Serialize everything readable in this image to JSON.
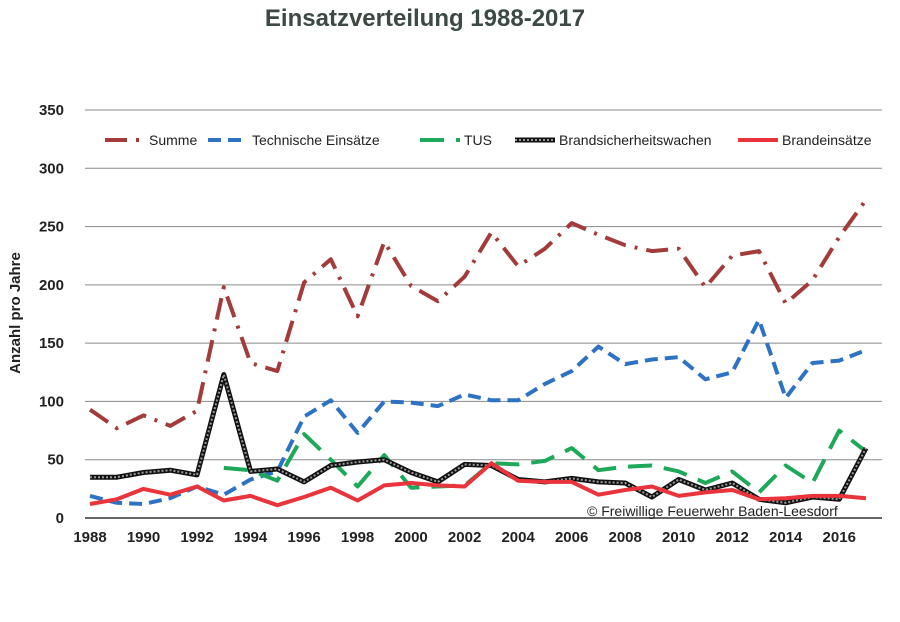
{
  "chart_data": {
    "type": "line",
    "title": "Einsatzverteilung 1988-2017",
    "ylabel": "Anzahl pro Jahre",
    "xlabel": "",
    "ylim": [
      0,
      350
    ],
    "yticks": [
      0,
      50,
      100,
      150,
      200,
      250,
      300,
      350
    ],
    "xlim": [
      1988,
      2017
    ],
    "xticks": [
      1988,
      1990,
      1992,
      1994,
      1996,
      1998,
      2000,
      2002,
      2004,
      2006,
      2008,
      2010,
      2012,
      2014,
      2016
    ],
    "grid": "horizontal",
    "legend_position": "top",
    "annotation": "© Freiwillige Feuerwehr Baden-Leesdorf",
    "series": [
      {
        "name": "Summe",
        "color": "#a33b3b",
        "dash": "dashdot",
        "x": [
          1988,
          1989,
          1990,
          1991,
          1992,
          1993,
          1994,
          1995,
          1996,
          1997,
          1998,
          1999,
          2000,
          2001,
          2002,
          2003,
          2004,
          2005,
          2006,
          2007,
          2008,
          2009,
          2010,
          2011,
          2012,
          2013,
          2014,
          2015,
          2016,
          2017
        ],
        "values": [
          93,
          77,
          88,
          79,
          92,
          198,
          133,
          126,
          202,
          222,
          173,
          237,
          199,
          186,
          207,
          245,
          216,
          231,
          253,
          243,
          234,
          229,
          231,
          198,
          225,
          229,
          184,
          204,
          241,
          273
        ]
      },
      {
        "name": "Technische Einsätze",
        "color": "#2e72c4",
        "dash": "dash",
        "x": [
          1988,
          1989,
          1990,
          1991,
          1992,
          1993,
          1994,
          1995,
          1996,
          1997,
          1998,
          1999,
          2000,
          2001,
          2002,
          2003,
          2004,
          2005,
          2006,
          2007,
          2008,
          2009,
          2010,
          2011,
          2012,
          2013,
          2014,
          2015,
          2016,
          2017
        ],
        "values": [
          19,
          13,
          12,
          17,
          27,
          20,
          33,
          40,
          87,
          101,
          73,
          100,
          99,
          96,
          106,
          101,
          101,
          115,
          126,
          147,
          132,
          136,
          138,
          119,
          125,
          170,
          103,
          133,
          135,
          144
        ]
      },
      {
        "name": "TUS",
        "color": "#1ea85a",
        "dash": "longdash",
        "x": [
          1993,
          1994,
          1995,
          1996,
          1997,
          1998,
          1999,
          2000,
          2001,
          2002,
          2003,
          2004,
          2005,
          2006,
          2007,
          2008,
          2009,
          2010,
          2011,
          2012,
          2013,
          2014,
          2015,
          2016,
          2017
        ],
        "values": [
          43,
          41,
          32,
          72,
          50,
          27,
          54,
          26,
          27,
          28,
          47,
          46,
          49,
          60,
          41,
          44,
          45,
          40,
          30,
          40,
          22,
          45,
          30,
          75,
          57
        ]
      },
      {
        "name": "Brandsicherheitswachen",
        "color": "#333333",
        "dash": "solid",
        "x": [
          1988,
          1989,
          1990,
          1991,
          1992,
          1993,
          1994,
          1995,
          1996,
          1997,
          1998,
          1999,
          2000,
          2001,
          2002,
          2003,
          2004,
          2005,
          2006,
          2007,
          2008,
          2009,
          2010,
          2011,
          2012,
          2013,
          2014,
          2015,
          2016,
          2017
        ],
        "values": [
          35,
          35,
          39,
          41,
          37,
          123,
          40,
          42,
          31,
          45,
          48,
          50,
          39,
          31,
          46,
          45,
          33,
          31,
          34,
          31,
          30,
          18,
          33,
          24,
          30,
          16,
          13,
          18,
          16,
          60
        ]
      },
      {
        "name": "Brandeinsätze",
        "color": "#e8343a",
        "dash": "solid",
        "x": [
          1988,
          1989,
          1990,
          1991,
          1992,
          1993,
          1994,
          1995,
          1996,
          1997,
          1998,
          1999,
          2000,
          2001,
          2002,
          2003,
          2004,
          2005,
          2006,
          2007,
          2008,
          2009,
          2010,
          2011,
          2012,
          2013,
          2014,
          2015,
          2016,
          2017
        ],
        "values": [
          12,
          16,
          25,
          20,
          27,
          15,
          19,
          11,
          18,
          26,
          15,
          28,
          30,
          28,
          27,
          47,
          32,
          31,
          31,
          20,
          24,
          27,
          19,
          22,
          24,
          16,
          17,
          19,
          19,
          17
        ]
      }
    ]
  }
}
